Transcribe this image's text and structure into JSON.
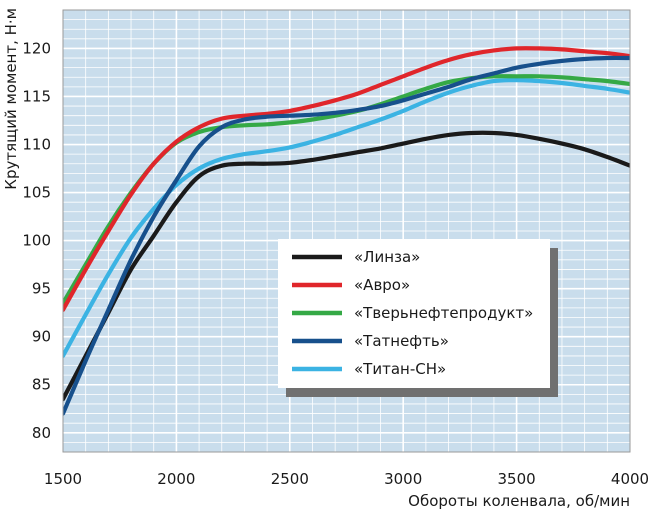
{
  "chart_data": {
    "type": "line",
    "title": "",
    "xlabel": "Обороты коленвала, об/мин",
    "ylabel": "Крутящий момент, Н·м",
    "xlim": [
      1500,
      4000
    ],
    "ylim": [
      78,
      124
    ],
    "x_ticks": [
      1500,
      2000,
      2500,
      3000,
      3500,
      4000
    ],
    "y_ticks": [
      80,
      85,
      90,
      95,
      100,
      105,
      110,
      115,
      120
    ],
    "grid": true,
    "legend_position": "center-right",
    "background_color": "#c9ddec",
    "series": [
      {
        "name": "«Линза»",
        "color": "#1a1a1a",
        "x": [
          1500,
          1600,
          1700,
          1800,
          1900,
          2000,
          2100,
          2200,
          2300,
          2400,
          2500,
          2600,
          2700,
          2800,
          2900,
          3000,
          3100,
          3200,
          3300,
          3400,
          3500,
          3600,
          3700,
          3800,
          3900,
          4000
        ],
        "y": [
          83.5,
          88,
          92.5,
          97,
          100.5,
          104,
          106.7,
          107.8,
          108,
          108,
          108.1,
          108.4,
          108.8,
          109.2,
          109.6,
          110.1,
          110.6,
          111,
          111.2,
          111.2,
          111,
          110.6,
          110.1,
          109.5,
          108.7,
          107.8
        ]
      },
      {
        "name": "«Авро»",
        "color": "#e0262b",
        "x": [
          1500,
          1600,
          1700,
          1800,
          1900,
          2000,
          2100,
          2200,
          2300,
          2400,
          2500,
          2600,
          2700,
          2800,
          2900,
          3000,
          3100,
          3200,
          3300,
          3400,
          3500,
          3600,
          3700,
          3800,
          3900,
          4000
        ],
        "y": [
          92.8,
          97,
          101,
          104.8,
          108,
          110.3,
          111.8,
          112.7,
          113,
          113.2,
          113.5,
          114,
          114.6,
          115.3,
          116.2,
          117.1,
          118,
          118.8,
          119.4,
          119.8,
          120,
          120,
          119.9,
          119.7,
          119.5,
          119.2
        ]
      },
      {
        "name": "«Тверьнефтепродукт»",
        "color": "#35a946",
        "x": [
          1500,
          1600,
          1700,
          1800,
          1900,
          2000,
          2100,
          2200,
          2300,
          2400,
          2500,
          2600,
          2700,
          2800,
          2900,
          3000,
          3100,
          3200,
          3300,
          3400,
          3500,
          3600,
          3700,
          3800,
          3900,
          4000
        ],
        "y": [
          93.5,
          97.5,
          101.5,
          105,
          108,
          110.2,
          111.3,
          111.8,
          112,
          112.1,
          112.3,
          112.6,
          113,
          113.5,
          114.2,
          115,
          115.8,
          116.5,
          116.9,
          117.1,
          117.1,
          117.1,
          117,
          116.8,
          116.6,
          116.3
        ]
      },
      {
        "name": "«Татнефть»",
        "color": "#17508c",
        "x": [
          1500,
          1600,
          1700,
          1800,
          1900,
          2000,
          2100,
          2200,
          2300,
          2400,
          2500,
          2600,
          2700,
          2800,
          2900,
          3000,
          3100,
          3200,
          3300,
          3400,
          3500,
          3600,
          3700,
          3800,
          3900,
          4000
        ],
        "y": [
          82,
          87.5,
          92.8,
          98,
          102.5,
          106.3,
          109.8,
          111.8,
          112.6,
          112.9,
          113,
          113.1,
          113.3,
          113.6,
          114,
          114.6,
          115.3,
          116,
          116.8,
          117.4,
          118,
          118.4,
          118.7,
          118.9,
          119,
          119
        ]
      },
      {
        "name": "«Титан-СН»",
        "color": "#3bb3e3",
        "x": [
          1500,
          1600,
          1700,
          1800,
          1900,
          2000,
          2100,
          2200,
          2300,
          2400,
          2500,
          2600,
          2700,
          2800,
          2900,
          3000,
          3100,
          3200,
          3300,
          3400,
          3500,
          3600,
          3700,
          3800,
          3900,
          4000
        ],
        "y": [
          88,
          92.3,
          96.5,
          100.3,
          103.3,
          105.8,
          107.5,
          108.5,
          109,
          109.3,
          109.7,
          110.3,
          111,
          111.8,
          112.6,
          113.5,
          114.5,
          115.4,
          116.1,
          116.6,
          116.7,
          116.6,
          116.4,
          116.1,
          115.8,
          115.4
        ]
      }
    ]
  }
}
